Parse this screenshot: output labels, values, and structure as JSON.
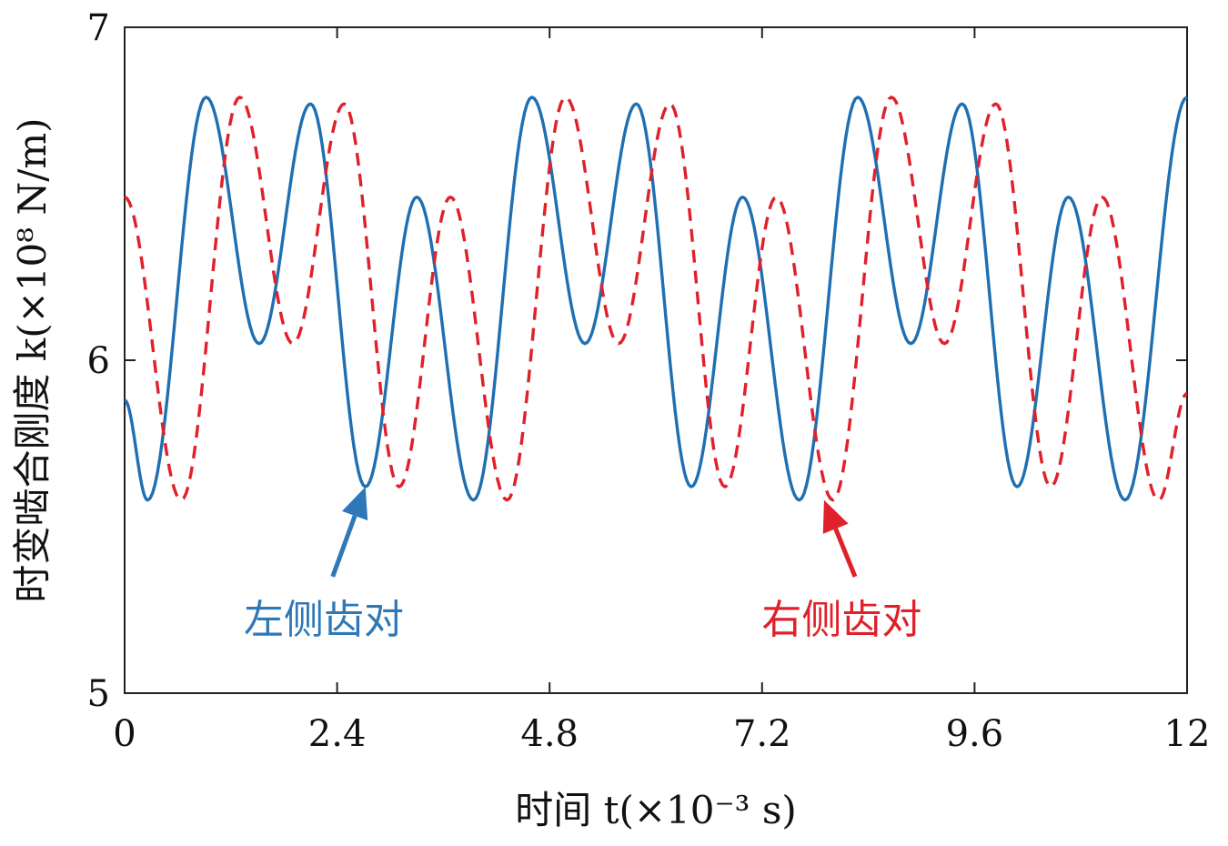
{
  "chart_data": {
    "type": "line",
    "xlabel": "时间 t(×10⁻³ s)",
    "ylabel": "时变啮合刚度 k(×10⁸ N/m)",
    "xlim": [
      0,
      12
    ],
    "ylim": [
      5,
      7
    ],
    "x_ticks": [
      "0",
      "2.4",
      "4.8",
      "7.2",
      "9.6",
      "12"
    ],
    "y_ticks": [
      "5",
      "6",
      "7"
    ],
    "grid": false,
    "series": [
      {
        "name": "左侧齿对",
        "color": "#1f6fb2",
        "style": "solid",
        "points": [
          [
            0,
            5.88
          ],
          [
            0.26,
            5.58
          ],
          [
            0.92,
            6.79
          ],
          [
            1.52,
            6.05
          ],
          [
            2.1,
            6.77
          ],
          [
            2.72,
            5.62
          ],
          [
            3.3,
            6.49
          ],
          [
            3.94,
            5.58
          ],
          [
            4.6,
            6.79
          ],
          [
            5.2,
            6.05
          ],
          [
            5.78,
            6.77
          ],
          [
            6.4,
            5.62
          ],
          [
            6.98,
            6.49
          ],
          [
            7.62,
            5.58
          ],
          [
            8.28,
            6.79
          ],
          [
            8.88,
            6.05
          ],
          [
            9.46,
            6.77
          ],
          [
            10.08,
            5.62
          ],
          [
            10.66,
            6.49
          ],
          [
            11.3,
            5.58
          ],
          [
            12,
            6.79
          ]
        ]
      },
      {
        "name": "右侧齿对",
        "color": "#e0202a",
        "style": "dashed",
        "points": [
          [
            0,
            6.49
          ],
          [
            0.64,
            5.58
          ],
          [
            1.3,
            6.79
          ],
          [
            1.9,
            6.05
          ],
          [
            2.48,
            6.77
          ],
          [
            3.1,
            5.62
          ],
          [
            3.68,
            6.49
          ],
          [
            4.32,
            5.58
          ],
          [
            4.98,
            6.79
          ],
          [
            5.58,
            6.05
          ],
          [
            6.16,
            6.77
          ],
          [
            6.78,
            5.62
          ],
          [
            7.36,
            6.49
          ],
          [
            8.0,
            5.58
          ],
          [
            8.66,
            6.79
          ],
          [
            9.26,
            6.05
          ],
          [
            9.84,
            6.77
          ],
          [
            10.46,
            5.62
          ],
          [
            11.04,
            6.49
          ],
          [
            11.68,
            5.58
          ],
          [
            12,
            5.9
          ]
        ]
      }
    ],
    "annotations": [
      {
        "text": "左侧齿对",
        "color": "#2e78b7",
        "label_at": [
          2.25,
          5.3
        ],
        "arrow_from": [
          2.35,
          5.35
        ],
        "arrow_to": [
          2.72,
          5.62
        ]
      },
      {
        "text": "右侧齿对",
        "color": "#e0202a",
        "label_at": [
          8.1,
          5.3
        ],
        "arrow_from": [
          8.25,
          5.35
        ],
        "arrow_to": [
          7.9,
          5.58
        ]
      }
    ]
  }
}
